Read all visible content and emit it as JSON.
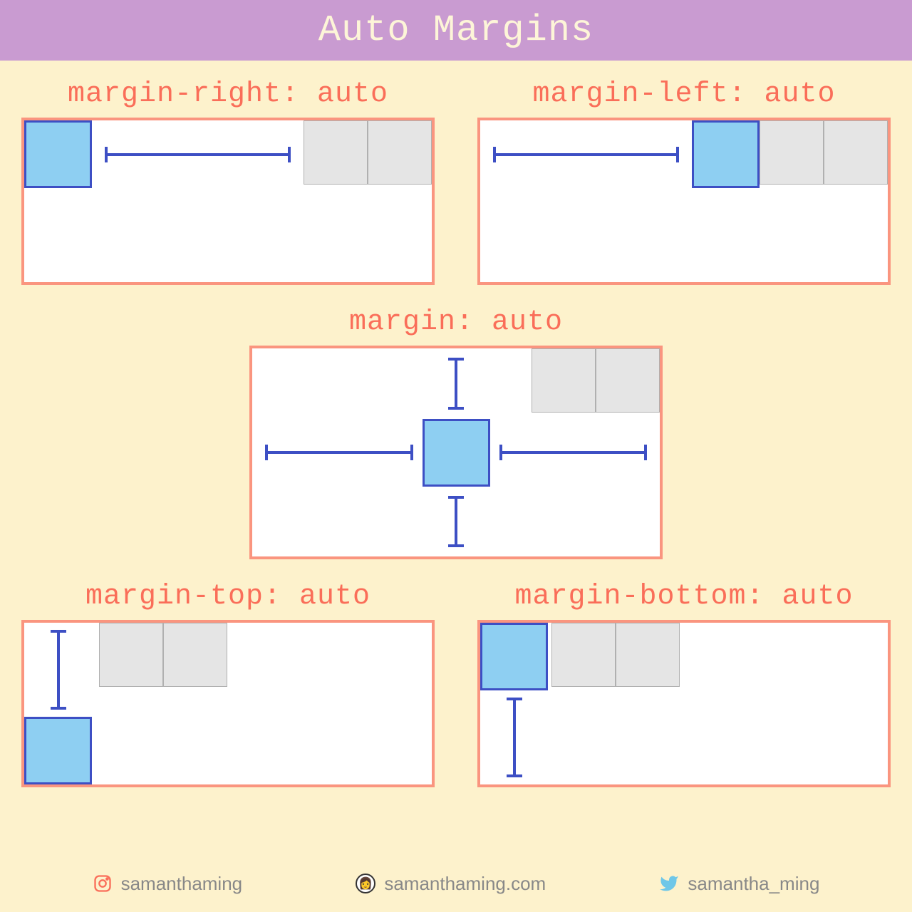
{
  "colors": {
    "header_bg": "#c99bd1",
    "header_text": "#fdf5d8",
    "page_bg": "#fdf2cc",
    "label_text": "#fa6e59",
    "border_coral": "#fa957f",
    "box_bg": "#ffffff",
    "blue_fill": "#8ecff2",
    "blue_stroke": "#3d4fc4",
    "gray_fill": "#e5e5e5",
    "gray_stroke": "#b0b0b0",
    "arrow_color": "#3d4fc4",
    "footer_text": "#888888"
  },
  "title": "Auto Margins",
  "panels": {
    "top_left": {
      "label": "margin-right: auto"
    },
    "top_right": {
      "label": "margin-left: auto"
    },
    "center": {
      "label": "margin: auto"
    },
    "bottom_left": {
      "label": "margin-top: auto"
    },
    "bottom_right": {
      "label": "margin-bottom: auto"
    }
  },
  "sizes": {
    "blue_box": 95,
    "gray_box": 90,
    "arrow_thickness": 4,
    "cap_length": 22
  },
  "footer": {
    "instagram": "samanthaming",
    "website": "samanthaming.com",
    "twitter": "samantha_ming"
  }
}
